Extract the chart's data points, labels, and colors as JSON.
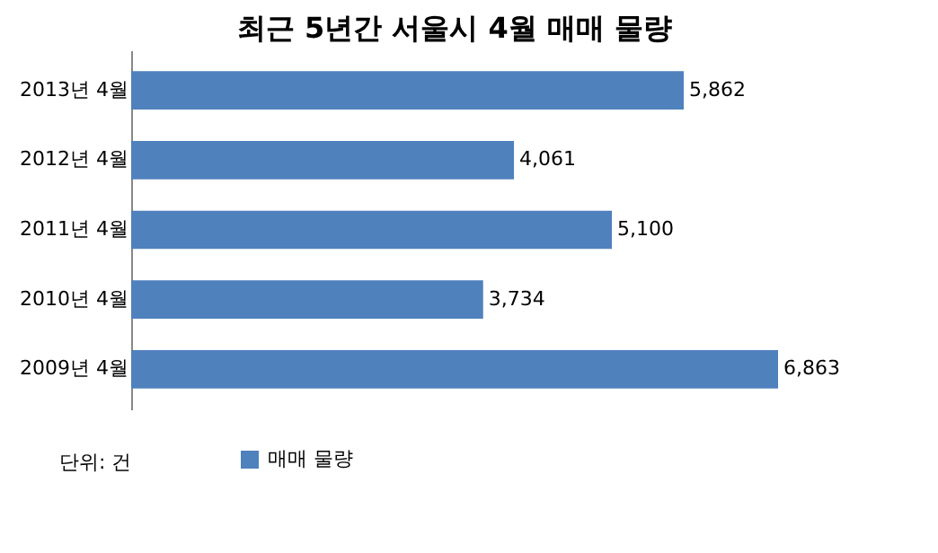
{
  "chart_data": {
    "type": "bar",
    "orientation": "horizontal",
    "title": "최근 5년간 서울시 4월 매매 물량",
    "categories": [
      "2013년 4월",
      "2012년 4월",
      "2011년 4월",
      "2010년 4월",
      "2009년 4월"
    ],
    "series": [
      {
        "name": "매매 물량",
        "color": "#4f81bd",
        "values": [
          5862,
          4061,
          5100,
          3734,
          6863
        ],
        "value_labels": [
          "5,862",
          "4,061",
          "5,100",
          "3,734",
          "6,863"
        ]
      }
    ],
    "legend": "bottom",
    "grid": false,
    "annotations": [
      "단위: 건"
    ]
  }
}
